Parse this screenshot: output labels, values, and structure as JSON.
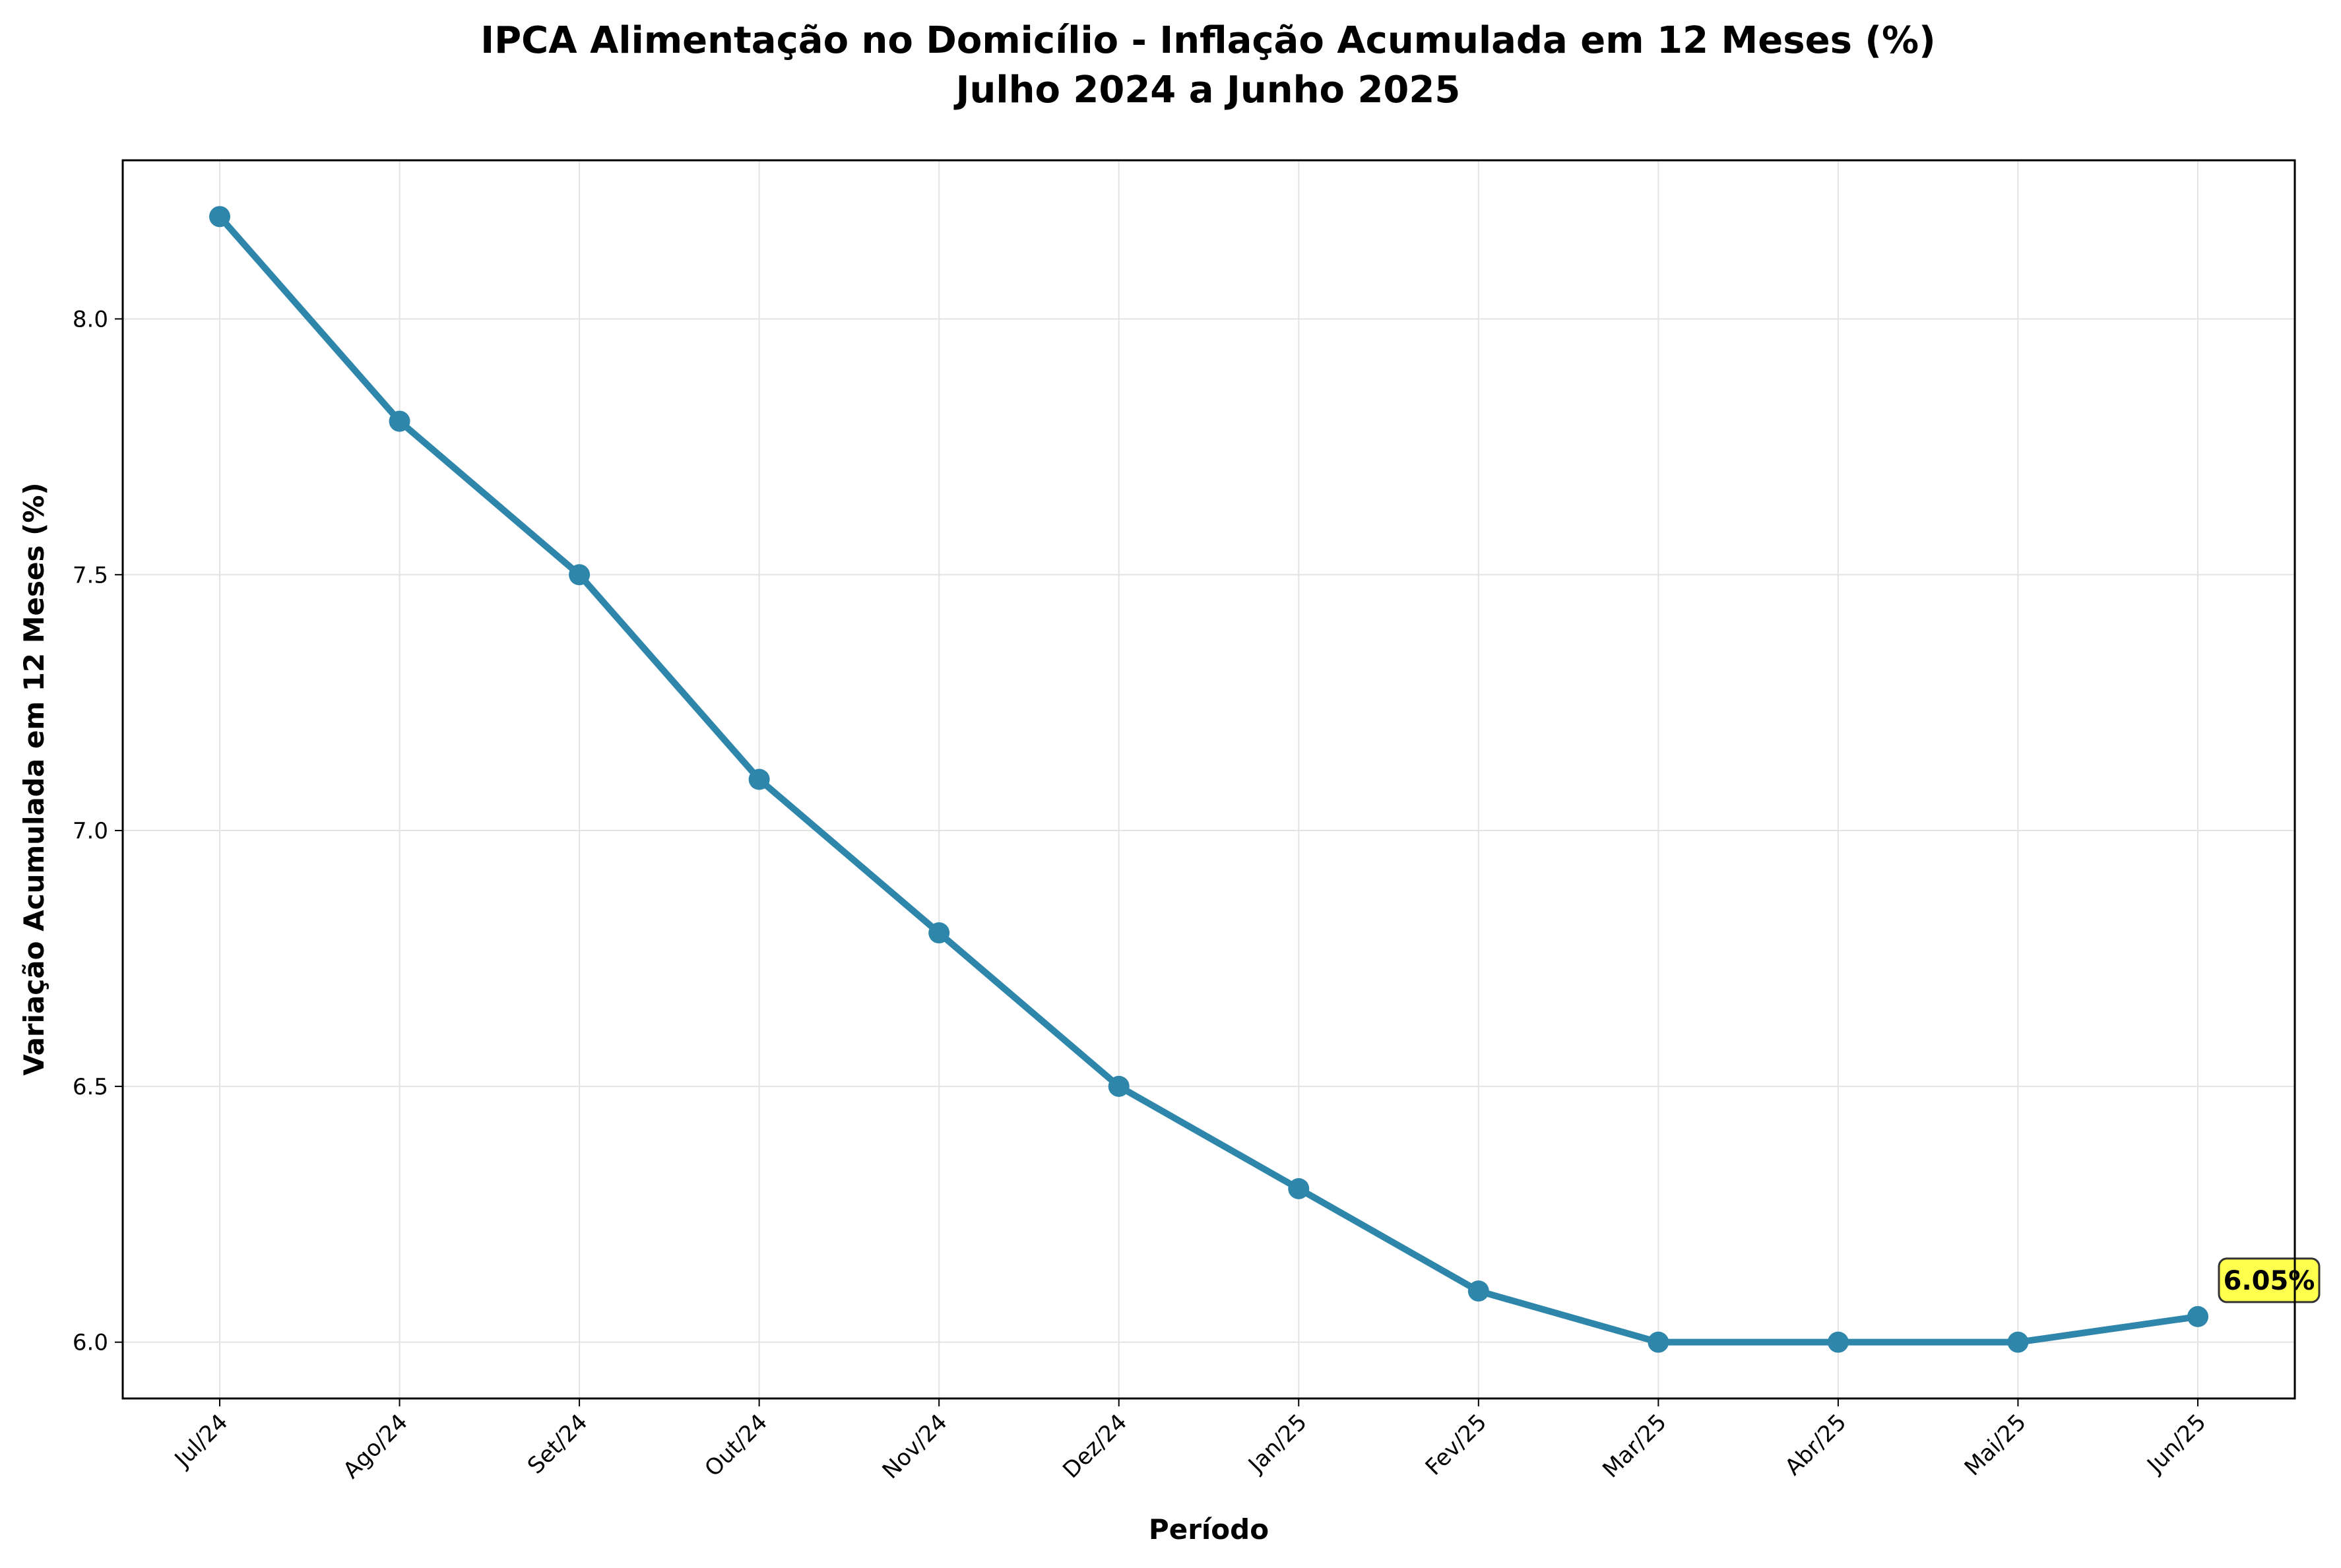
{
  "chart_data": {
    "type": "line",
    "title": "IPCA Alimentação no Domicílio - Inflação Acumulada em 12 Meses (%)",
    "subtitle": "Julho 2024 a Junho 2025",
    "xlabel": "Período",
    "ylabel": "Variação Acumulada em 12 Meses (%)",
    "categories": [
      "Jul/24",
      "Ago/24",
      "Set/24",
      "Out/24",
      "Nov/24",
      "Dez/24",
      "Jan/25",
      "Fev/25",
      "Mar/25",
      "Abr/25",
      "Mai/25",
      "Jun/25"
    ],
    "series": [
      {
        "values": [
          8.2,
          7.8,
          7.5,
          7.1,
          6.8,
          6.5,
          6.3,
          6.1,
          6.0,
          6.0,
          6.0,
          6.05
        ],
        "color": "#2e86ab"
      }
    ],
    "ylim": [
      5.89,
      8.31
    ],
    "yticks": [
      "6.0",
      "6.5",
      "7.0",
      "7.5",
      "8.0"
    ],
    "grid": true,
    "annotation": {
      "text": "6.05%",
      "category": "Jun/25",
      "value": 6.05,
      "background": "#ffff4d"
    }
  }
}
